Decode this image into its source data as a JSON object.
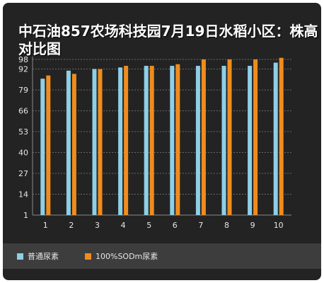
{
  "chart_data": {
    "type": "bar",
    "title": "中石油857农场科技园7月19日水稻小区：株高对比图",
    "xlabel": "",
    "ylabel": "",
    "categories": [
      "1",
      "2",
      "3",
      "4",
      "5",
      "6",
      "7",
      "8",
      "9",
      "10"
    ],
    "yticks": [
      1,
      14,
      27,
      40,
      53,
      66,
      79,
      92,
      98
    ],
    "ylim": [
      1,
      98
    ],
    "grid": true,
    "legend_position": "bottom",
    "series": [
      {
        "name": "普通尿素",
        "color": "#8ecfe6",
        "values": [
          86,
          91,
          92,
          93,
          94,
          94,
          94,
          94,
          94,
          96
        ]
      },
      {
        "name": "100%SODm尿素",
        "color": "#f08c1e",
        "values": [
          88,
          89,
          92,
          94,
          94,
          95,
          98,
          98,
          98,
          99
        ]
      }
    ]
  }
}
